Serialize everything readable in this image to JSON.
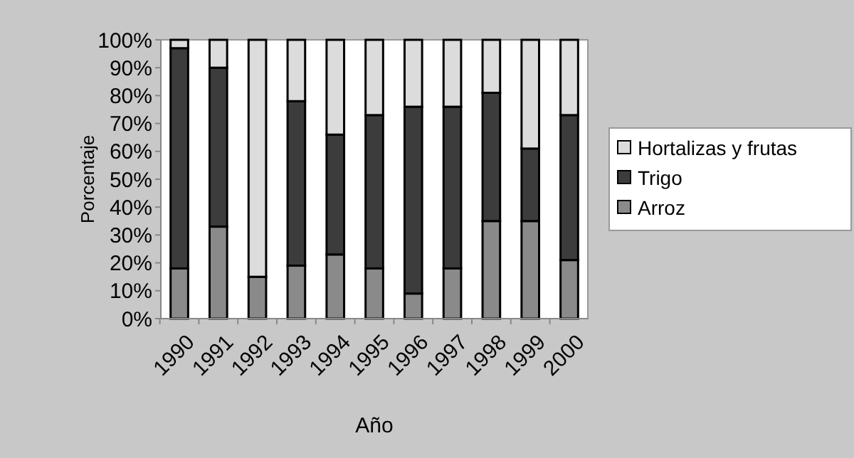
{
  "chart_data": {
    "type": "bar",
    "stacked": true,
    "xlabel": "Año",
    "ylabel": "Porcentaje",
    "categories": [
      "1990",
      "1991",
      "1992",
      "1993",
      "1994",
      "1995",
      "1996",
      "1997",
      "1998",
      "1999",
      "2000"
    ],
    "series": [
      {
        "name": "Arroz",
        "color": "#8a8a8a",
        "values": [
          18,
          33,
          15,
          19,
          23,
          18,
          9,
          18,
          35,
          35,
          21
        ]
      },
      {
        "name": "Trigo",
        "color": "#3c3c3c",
        "values": [
          79,
          57,
          0,
          59,
          43,
          55,
          67,
          58,
          46,
          26,
          52
        ]
      },
      {
        "name": "Hortalizas y frutas",
        "color": "#dcdcdc",
        "values": [
          3,
          10,
          85,
          22,
          34,
          27,
          24,
          24,
          19,
          39,
          27
        ]
      }
    ],
    "ylim": [
      0,
      100
    ],
    "yticks": [
      {
        "value": 0,
        "label": "0%"
      },
      {
        "value": 10,
        "label": "10%"
      },
      {
        "value": 20,
        "label": "20%"
      },
      {
        "value": 30,
        "label": "30%"
      },
      {
        "value": 40,
        "label": "40%"
      },
      {
        "value": 50,
        "label": "50%"
      },
      {
        "value": 60,
        "label": "60%"
      },
      {
        "value": 70,
        "label": "70%"
      },
      {
        "value": 80,
        "label": "80%"
      },
      {
        "value": 90,
        "label": "90%"
      },
      {
        "value": 100,
        "label": "100%"
      }
    ],
    "legend": "right"
  }
}
